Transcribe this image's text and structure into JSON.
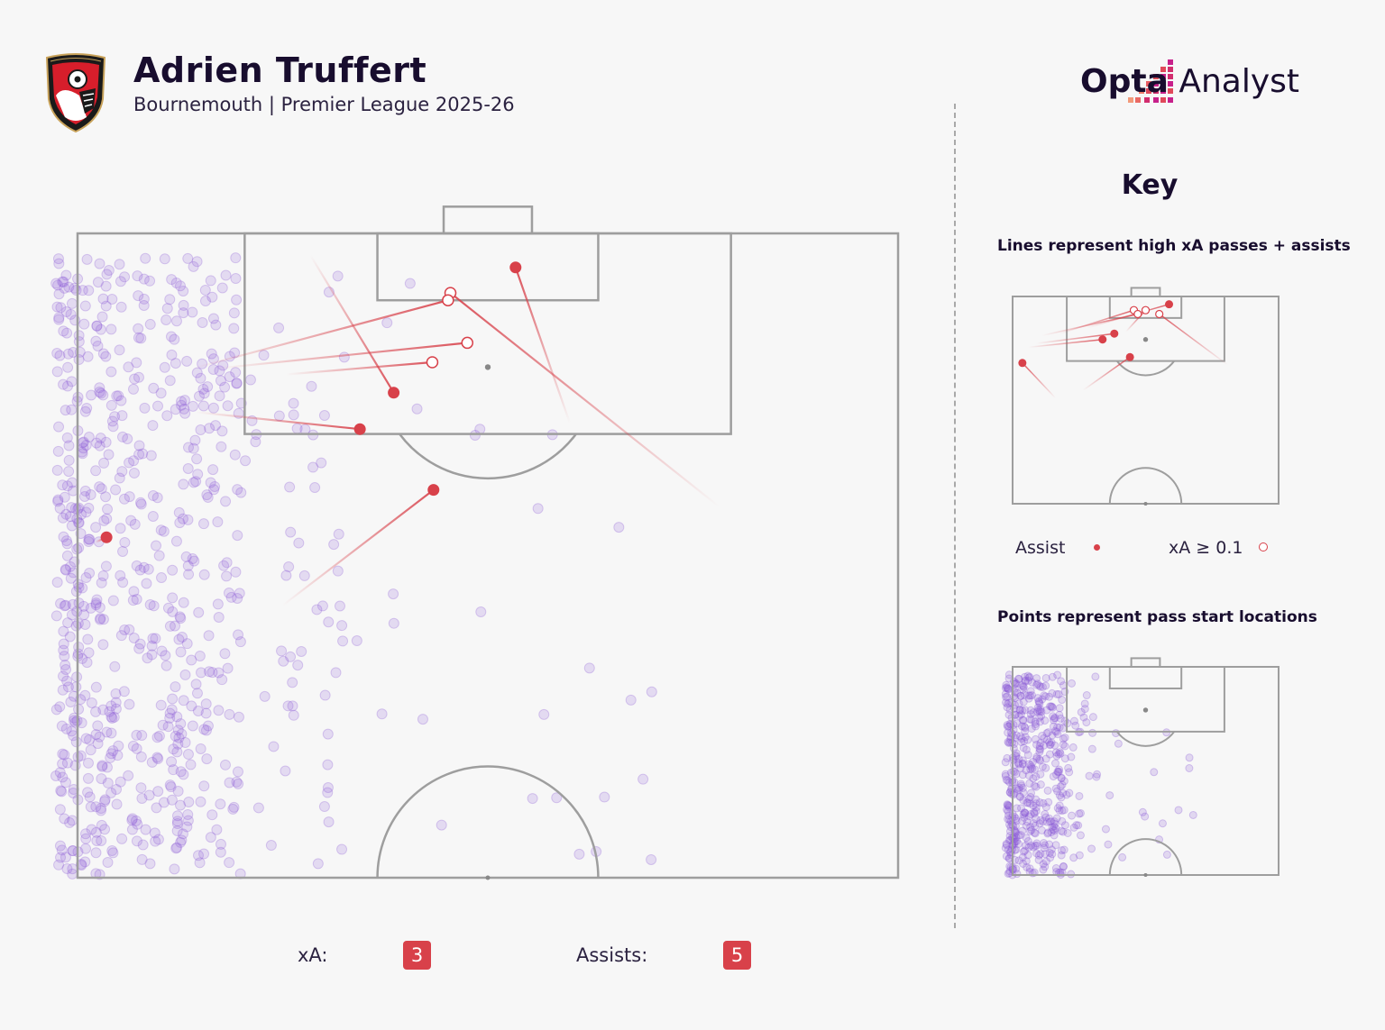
{
  "header": {
    "player_name": "Adrien Truffert",
    "subtitle": "Bournemouth | Premier League 2025-26",
    "crest_text": "AFC BOURNEMOUTH",
    "brand": {
      "bold": "Opta",
      "regular": " Analyst"
    }
  },
  "key": {
    "title": "Key",
    "lines_caption": "Lines represent high xA passes + assists",
    "points_caption": "Points represent pass start locations",
    "legend": [
      {
        "label": "Assist",
        "marker": "filled-dot"
      },
      {
        "label": "xA ≥ 0.1",
        "marker": "hollow-dot"
      }
    ]
  },
  "stats": {
    "xa_label": "xA:",
    "xa_value": "3",
    "assists_label": "Assists:",
    "assists_value": "5"
  },
  "colors": {
    "accent": "#d8414a",
    "points": "#8a5ad6",
    "pitch_lines": "#9e9e9e",
    "background": "#f7f7f7",
    "title": "#180d2e"
  },
  "chart_data": {
    "type": "scatter",
    "pitch": "attacking half, vertical orientation, goal at top",
    "units": "pitch coordinates: x = 0 (left touchline) to 68 (right touchline), y = metres from the attacking goal line (0 to 53)",
    "series": [
      {
        "name": "Assist",
        "marker": "filled",
        "passes": [
          {
            "start": [
              40.8,
              15.6
            ],
            "end": [
              36.3,
              2.8
            ]
          },
          {
            "start": [
              19.3,
              1.8
            ],
            "end": [
              26.2,
              13.1
            ]
          },
          {
            "start": [
              1.5,
              25.4
            ],
            "end": [
              2.4,
              25.0
            ]
          },
          {
            "start": [
              17.0,
              30.6
            ],
            "end": [
              29.5,
              21.1
            ]
          },
          {
            "start": [
              9.8,
              14.7
            ],
            "end": [
              23.4,
              16.1
            ]
          }
        ]
      },
      {
        "name": "xA ≥ 0.1",
        "marker": "hollow",
        "passes": [
          {
            "start": [
              53.2,
              22.5
            ],
            "end": [
              30.9,
              4.9
            ]
          },
          {
            "start": [
              9.6,
              11.1
            ],
            "end": [
              30.7,
              5.5
            ]
          },
          {
            "start": [
              11.6,
              11.1
            ],
            "end": [
              32.3,
              9.0
            ]
          },
          {
            "start": [
              17.3,
              11.6
            ],
            "end": [
              29.4,
              10.6
            ]
          }
        ]
      },
      {
        "name": "Pass starts",
        "marker": "faint-purple",
        "seed": 7,
        "distribution": "dense along left touchline, thinning toward centre",
        "count": 740
      }
    ]
  }
}
